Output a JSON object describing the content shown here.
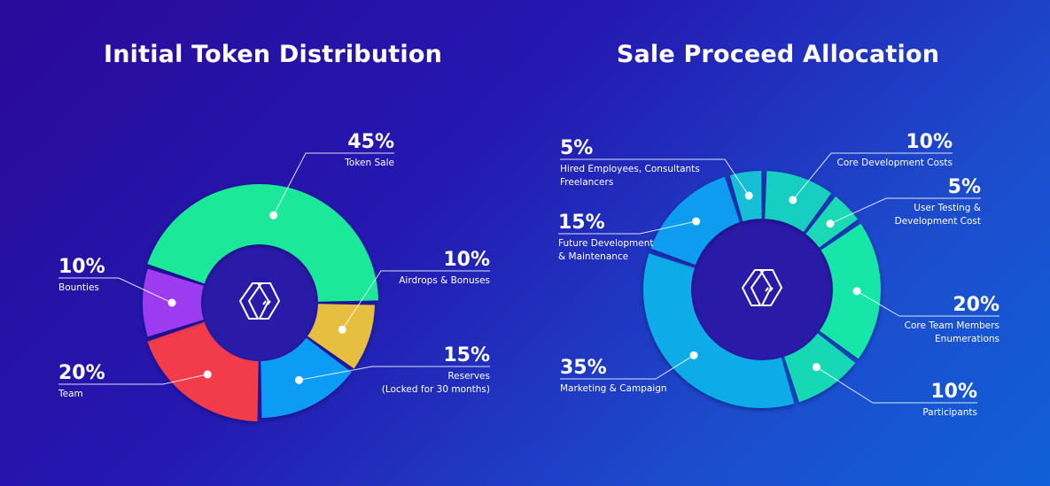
{
  "chart_data": [
    {
      "type": "pie",
      "title": "Initial Token Distribution",
      "slices": [
        {
          "label": "Token Sale",
          "value": 45,
          "display": "45%",
          "color": "#1ee89a"
        },
        {
          "label": "Airdrops & Bonuses",
          "value": 10,
          "display": "10%",
          "color": "#e6be40"
        },
        {
          "label": "Reserves",
          "sublabel": "(Locked for 30 months)",
          "value": 15,
          "display": "15%",
          "color": "#0c9cf5"
        },
        {
          "label": "Team",
          "value": 20,
          "display": "20%",
          "color": "#f23b4c"
        },
        {
          "label": "Bounties",
          "value": 10,
          "display": "10%",
          "color": "#9c3af0"
        }
      ]
    },
    {
      "type": "pie",
      "title": "Sale Proceed Allocation",
      "slices": [
        {
          "label": "Core Development Costs",
          "value": 10,
          "display": "10%",
          "color": "#16cfc0"
        },
        {
          "label": "User Testing &",
          "sublabel": "Development Cost",
          "value": 5,
          "display": "5%",
          "color": "#1ad9b6"
        },
        {
          "label": "Core Team Members",
          "sublabel": "Enumerations",
          "value": 20,
          "display": "20%",
          "color": "#14e6a8"
        },
        {
          "label": "Participants",
          "value": 10,
          "display": "10%",
          "color": "#12d8b4"
        },
        {
          "label": "Marketing & Campaign",
          "value": 35,
          "display": "35%",
          "color": "#0aace8"
        },
        {
          "label": "Future Development",
          "sublabel": "& Maintenance",
          "value": 15,
          "display": "15%",
          "color": "#0b9cf0"
        },
        {
          "label": "Hired Employees, Consultants",
          "sublabel": "Freelancers",
          "value": 5,
          "display": "5%",
          "color": "#12bfd6"
        }
      ]
    }
  ]
}
